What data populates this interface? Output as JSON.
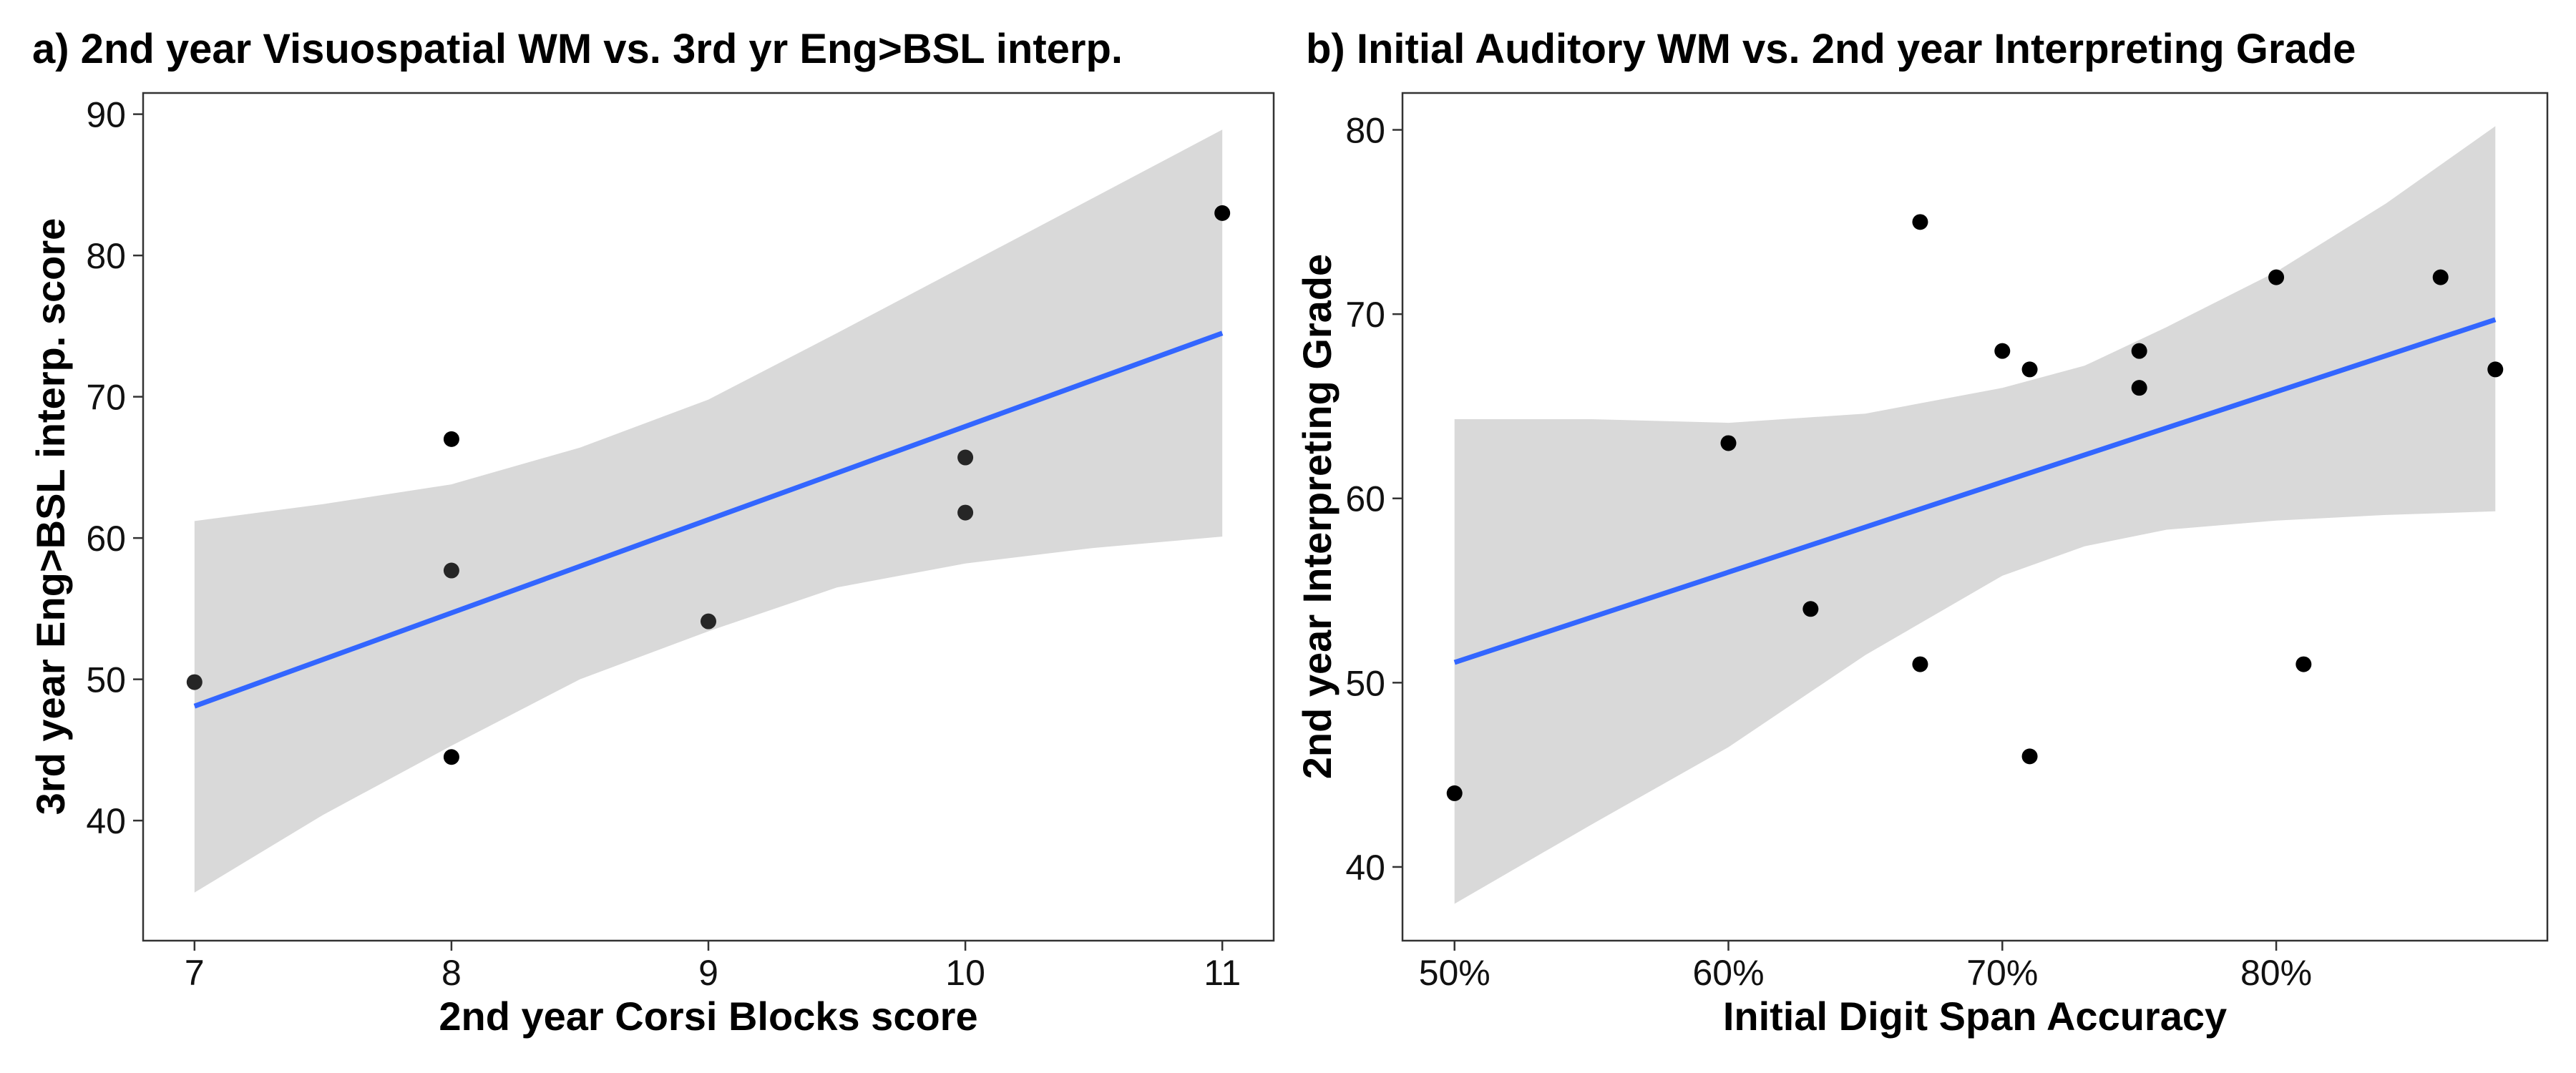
{
  "chart_data": [
    {
      "type": "scatter",
      "title": "a) 2nd year Visuospatial WM vs. 3rd yr Eng>BSL interp.",
      "xlabel": "2nd year Corsi Blocks score",
      "ylabel": "3rd year Eng>BSL interp. score",
      "xlim": [
        6.8,
        11.2
      ],
      "ylim": [
        31.5,
        91.5
      ],
      "xticks": [
        7,
        8,
        9,
        10,
        11
      ],
      "xtick_labels": [
        "7",
        "8",
        "9",
        "10",
        "11"
      ],
      "yticks": [
        40,
        50,
        60,
        70,
        80,
        90
      ],
      "ytick_labels": [
        "40",
        "50",
        "60",
        "70",
        "80",
        "90"
      ],
      "points": [
        {
          "x": 7,
          "y": 49.8,
          "color": "#262626"
        },
        {
          "x": 8,
          "y": 67,
          "color": "#000000"
        },
        {
          "x": 8,
          "y": 57.7,
          "color": "#262626"
        },
        {
          "x": 8,
          "y": 44.5,
          "color": "#000000"
        },
        {
          "x": 9,
          "y": 54.1,
          "color": "#262626"
        },
        {
          "x": 10,
          "y": 65.7,
          "color": "#262626"
        },
        {
          "x": 10,
          "y": 61.8,
          "color": "#262626"
        },
        {
          "x": 11,
          "y": 83,
          "color": "#000000"
        }
      ],
      "fit": {
        "x": [
          7,
          11
        ],
        "y": [
          48.1,
          74.5
        ],
        "band_x": [
          7,
          7.5,
          8,
          8.5,
          9,
          9.5,
          10,
          10.5,
          11
        ],
        "band_upper": [
          61.2,
          62.4,
          63.8,
          66.4,
          69.8,
          74.5,
          79.3,
          84.1,
          88.9
        ],
        "band_lower": [
          34.9,
          40.4,
          45.3,
          50.0,
          53.4,
          56.5,
          58.2,
          59.3,
          60.1
        ]
      },
      "colors": {
        "line": "#3366ff",
        "band": "#d9d9d9",
        "point": "#000000"
      }
    },
    {
      "type": "scatter",
      "title": "b) Initial Auditory WM vs. 2nd year Interpreting Grade",
      "xlabel": "Initial Digit Span Accuracy",
      "ylabel": "2nd year Interpreting Grade",
      "xlim": [
        0.481,
        0.899
      ],
      "ylim": [
        36.0,
        82.0
      ],
      "xticks": [
        0.5,
        0.6,
        0.7,
        0.8
      ],
      "xtick_labels": [
        "50%",
        "60%",
        "70%",
        "80%"
      ],
      "yticks": [
        40,
        50,
        60,
        70,
        80
      ],
      "ytick_labels": [
        "40",
        "50",
        "60",
        "70",
        "80"
      ],
      "points": [
        {
          "x": 0.5,
          "y": 44,
          "color": "#000000"
        },
        {
          "x": 0.6,
          "y": 63,
          "color": "#000000"
        },
        {
          "x": 0.63,
          "y": 54,
          "color": "#000000"
        },
        {
          "x": 0.67,
          "y": 75,
          "color": "#000000"
        },
        {
          "x": 0.67,
          "y": 51,
          "color": "#000000"
        },
        {
          "x": 0.7,
          "y": 68,
          "color": "#000000"
        },
        {
          "x": 0.71,
          "y": 67,
          "color": "#000000"
        },
        {
          "x": 0.71,
          "y": 46,
          "color": "#000000"
        },
        {
          "x": 0.75,
          "y": 68,
          "color": "#000000"
        },
        {
          "x": 0.75,
          "y": 66,
          "color": "#000000"
        },
        {
          "x": 0.8,
          "y": 72,
          "color": "#000000"
        },
        {
          "x": 0.81,
          "y": 51,
          "color": "#000000"
        },
        {
          "x": 0.86,
          "y": 72,
          "color": "#000000"
        },
        {
          "x": 0.88,
          "y": 67,
          "color": "#000000"
        }
      ],
      "fit": {
        "x": [
          0.5,
          0.88
        ],
        "y": [
          51.1,
          69.7
        ],
        "band_x": [
          0.5,
          0.55,
          0.6,
          0.65,
          0.7,
          0.73,
          0.76,
          0.8,
          0.84,
          0.88
        ],
        "band_upper": [
          64.3,
          64.3,
          64.1,
          64.6,
          66.0,
          67.2,
          69.3,
          72.3,
          76.0,
          80.2
        ],
        "band_lower": [
          38.0,
          42.3,
          46.5,
          51.5,
          55.8,
          57.4,
          58.3,
          58.8,
          59.1,
          59.3
        ]
      },
      "colors": {
        "line": "#3366ff",
        "band": "#d9d9d9",
        "point": "#000000"
      }
    }
  ]
}
